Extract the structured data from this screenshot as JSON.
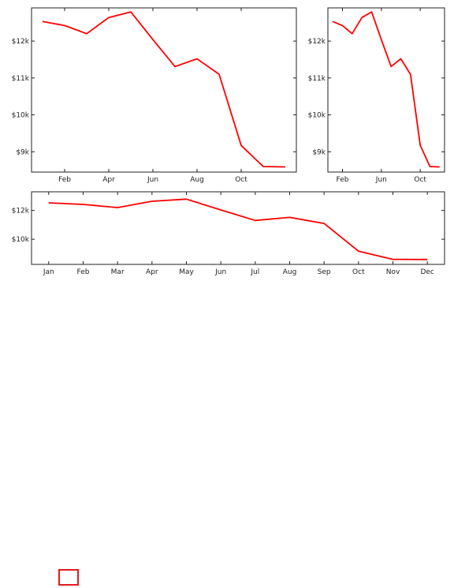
{
  "colors": {
    "series": "#ff0000",
    "legend_border": "#e41a1c"
  },
  "chart_data": [
    {
      "type": "line",
      "title": "",
      "xlabel": "",
      "ylabel": "",
      "grid": false,
      "x": [
        "Jan",
        "Feb",
        "Mar",
        "Apr",
        "May",
        "Jun",
        "Jul",
        "Aug",
        "Sep",
        "Oct",
        "Nov",
        "Dec"
      ],
      "xlim": [
        -0.5,
        11.5
      ],
      "xticks": [
        1,
        3,
        5,
        7,
        9
      ],
      "xtick_labels": [
        "Feb",
        "Apr",
        "Jun",
        "Aug",
        "Oct"
      ],
      "ylim": [
        8450,
        12900
      ],
      "yticks": [
        9000,
        10000,
        11000,
        12000
      ],
      "ytick_labels": [
        "$9k",
        "$10k",
        "$11k",
        "$12k"
      ],
      "series": [
        {
          "values": [
            12530,
            12420,
            12200,
            12640,
            12790,
            12040,
            11310,
            11520,
            11100,
            9170,
            8600,
            8590
          ]
        }
      ]
    },
    {
      "type": "line",
      "title": "",
      "xlabel": "",
      "ylabel": "",
      "grid": false,
      "x": [
        "Jan",
        "Feb",
        "Mar",
        "Apr",
        "May",
        "Jun",
        "Jul",
        "Aug",
        "Sep",
        "Oct",
        "Nov",
        "Dec"
      ],
      "xlim": [
        -0.5,
        11.5
      ],
      "xticks": [
        1,
        5,
        9
      ],
      "xtick_labels": [
        "Feb",
        "Jun",
        "Oct"
      ],
      "ylim": [
        8450,
        12900
      ],
      "yticks": [
        9000,
        10000,
        11000,
        12000
      ],
      "ytick_labels": [
        "$9k",
        "$10k",
        "$11k",
        "$12k"
      ],
      "series": [
        {
          "values": [
            12530,
            12420,
            12200,
            12640,
            12790,
            12040,
            11310,
            11520,
            11100,
            9170,
            8600,
            8590
          ]
        }
      ]
    },
    {
      "type": "line",
      "title": "",
      "xlabel": "",
      "ylabel": "",
      "grid": false,
      "x": [
        "Jan",
        "Feb",
        "Mar",
        "Apr",
        "May",
        "Jun",
        "Jul",
        "Aug",
        "Sep",
        "Oct",
        "Nov",
        "Dec"
      ],
      "xlim": [
        -0.5,
        11.5
      ],
      "xticks": [
        0,
        1,
        2,
        3,
        4,
        5,
        6,
        7,
        8,
        9,
        10,
        11
      ],
      "xtick_labels": [
        "Jan",
        "Feb",
        "Mar",
        "Apr",
        "May",
        "Jun",
        "Jul",
        "Aug",
        "Sep",
        "Oct",
        "Nov",
        "Dec"
      ],
      "ylim": [
        8250,
        13300
      ],
      "yticks": [
        10000,
        12000
      ],
      "ytick_labels": [
        "$10k",
        "$12k"
      ],
      "series": [
        {
          "values": [
            12530,
            12420,
            12200,
            12640,
            12790,
            12040,
            11310,
            11520,
            11100,
            9170,
            8600,
            8590
          ]
        }
      ]
    }
  ]
}
